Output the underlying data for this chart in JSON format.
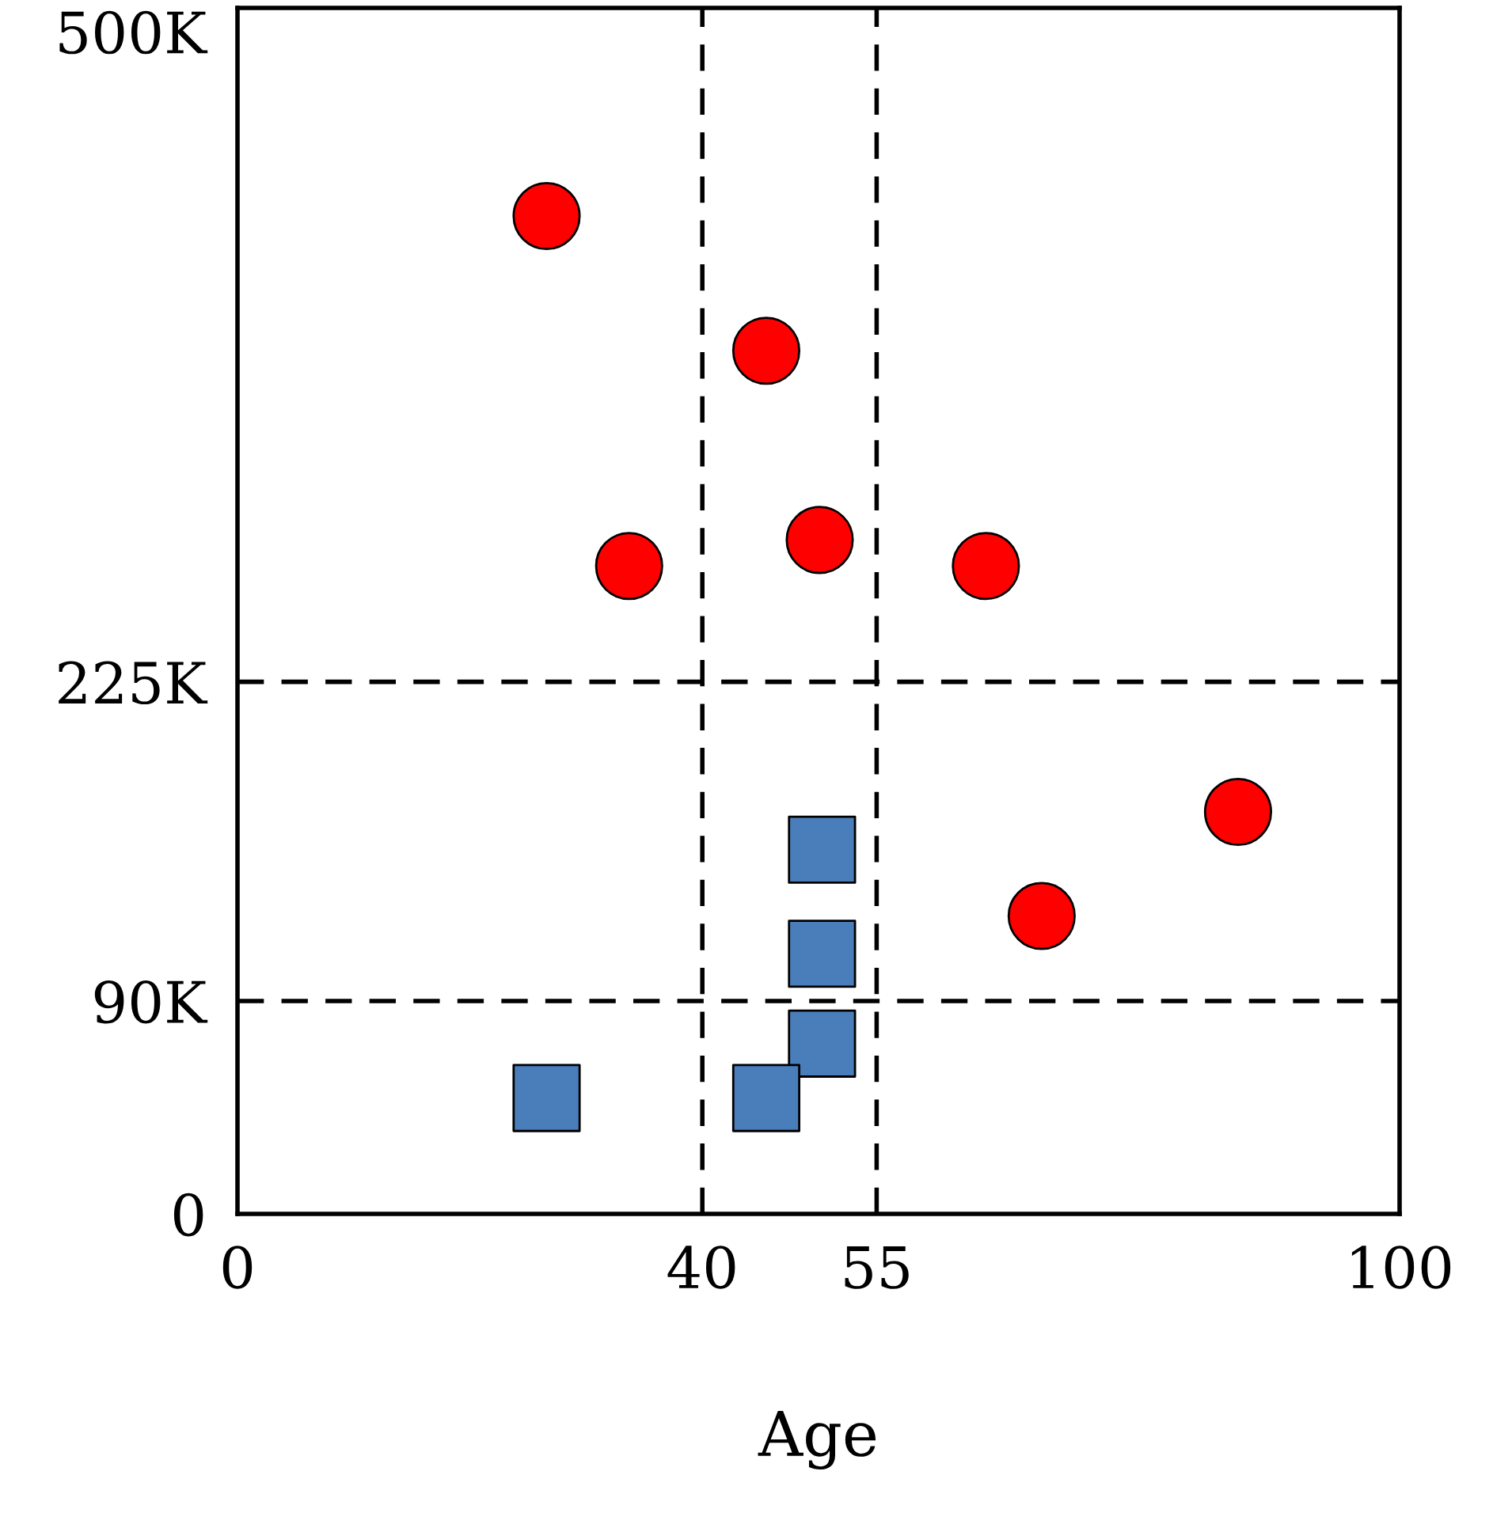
{
  "chart_data": {
    "type": "scatter",
    "xlabel": "Age",
    "xlim": [
      0,
      100
    ],
    "xticks": [
      0,
      40,
      55,
      100
    ],
    "ylim": [
      0,
      510000
    ],
    "yticks": [
      0,
      {
        "value": 90000,
        "label": "90K"
      },
      {
        "value": 225000,
        "label": "225K"
      },
      {
        "value": 500000,
        "label": "500K"
      }
    ],
    "grid": false,
    "ref_lines": [
      {
        "axis": "x",
        "value": 40,
        "line_style": "dashed",
        "color": "#000000"
      },
      {
        "axis": "x",
        "value": 55,
        "line_style": "dashed",
        "color": "#000000"
      },
      {
        "axis": "y",
        "value": 90000,
        "line_style": "dashed",
        "color": "#000000"
      },
      {
        "axis": "y",
        "value": 225000,
        "line_style": "dashed",
        "color": "#000000"
      }
    ],
    "series": [
      {
        "color": "#ff0000",
        "marker": "circle",
        "x": [
          26.6,
          45.5,
          33.7,
          50.1,
          64.4,
          86.1,
          69.2
        ],
        "values": [
          422000,
          365000,
          274000,
          285000,
          274000,
          170000,
          126000
        ]
      },
      {
        "color": "#4a7ebb",
        "marker": "square",
        "x": [
          50.3,
          50.3,
          50.3,
          26.6,
          45.5
        ],
        "values": [
          154000,
          110000,
          72000,
          49000,
          49000
        ]
      }
    ]
  }
}
